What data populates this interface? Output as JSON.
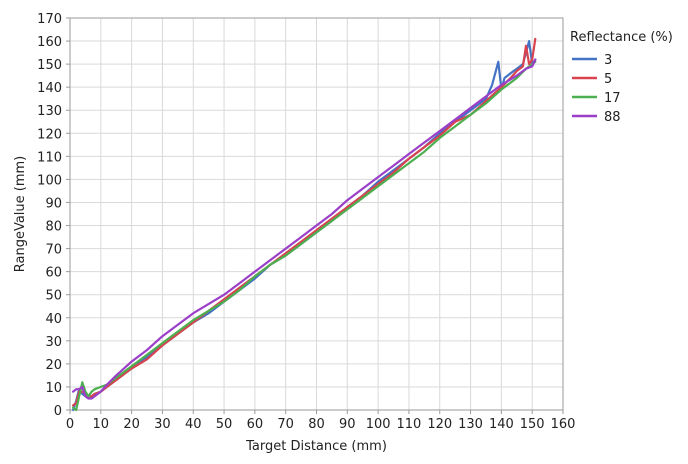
{
  "chart_data": {
    "type": "line",
    "xlabel": "Target Distance (mm)",
    "ylabel": "RangeValue (mm)",
    "xlim": [
      0,
      160
    ],
    "ylim": [
      0,
      170
    ],
    "xticks": [
      0,
      10,
      20,
      30,
      40,
      50,
      60,
      70,
      80,
      90,
      100,
      110,
      120,
      130,
      140,
      150,
      160
    ],
    "yticks": [
      0,
      10,
      20,
      30,
      40,
      50,
      60,
      70,
      80,
      90,
      100,
      110,
      120,
      130,
      140,
      150,
      160,
      170
    ],
    "grid": true,
    "legend_title": "Reflectance (%)",
    "legend_position": "right",
    "series": [
      {
        "name": "3",
        "color": "#4472C4",
        "x": [
          1,
          2,
          3,
          4,
          5,
          6,
          7,
          8,
          10,
          12,
          15,
          20,
          25,
          30,
          35,
          40,
          45,
          50,
          55,
          60,
          65,
          70,
          75,
          80,
          85,
          90,
          95,
          100,
          105,
          110,
          115,
          120,
          125,
          130,
          135,
          137,
          139,
          140,
          141,
          143,
          145,
          147,
          149,
          150,
          151
        ],
        "y": [
          0,
          4,
          9,
          7,
          6,
          5,
          6,
          7,
          8,
          10,
          13,
          18,
          23,
          28,
          33,
          38,
          42,
          47,
          52,
          57,
          63,
          67,
          72,
          77,
          82,
          88,
          93,
          99,
          104,
          109,
          114,
          120,
          125,
          130,
          135,
          141,
          151,
          139,
          144,
          146,
          148,
          150,
          160,
          150,
          152
        ]
      },
      {
        "name": "5",
        "color": "#D9434F",
        "x": [
          1,
          2,
          3,
          4,
          5,
          6,
          7,
          8,
          10,
          12,
          15,
          20,
          25,
          30,
          35,
          40,
          45,
          50,
          55,
          60,
          65,
          70,
          75,
          80,
          85,
          90,
          95,
          100,
          105,
          110,
          115,
          120,
          125,
          130,
          135,
          140,
          143,
          145,
          147,
          148,
          149,
          150,
          151
        ],
        "y": [
          2,
          3,
          8,
          8,
          7,
          6,
          6,
          7,
          8,
          10,
          13,
          18,
          22,
          28,
          33,
          38,
          43,
          48,
          53,
          58,
          63,
          68,
          73,
          78,
          83,
          88,
          93,
          98,
          103,
          109,
          114,
          119,
          125,
          128,
          134,
          140,
          144,
          147,
          149,
          158,
          150,
          152,
          161
        ]
      },
      {
        "name": "17",
        "color": "#4CAF50",
        "x": [
          1,
          2,
          3,
          4,
          5,
          6,
          7,
          8,
          10,
          12,
          15,
          20,
          25,
          30,
          35,
          40,
          45,
          50,
          55,
          60,
          65,
          70,
          75,
          80,
          85,
          90,
          95,
          100,
          105,
          110,
          115,
          120,
          125,
          130,
          135,
          140,
          145,
          148,
          150,
          151
        ],
        "y": [
          1,
          0,
          6,
          12,
          8,
          6,
          8,
          9,
          10,
          11,
          14,
          19,
          24,
          29,
          34,
          39,
          43,
          47,
          52,
          58,
          63,
          67,
          72,
          77,
          82,
          87,
          92,
          97,
          102,
          107,
          112,
          118,
          123,
          128,
          133,
          139,
          144,
          148,
          150,
          151
        ]
      },
      {
        "name": "88",
        "color": "#9B3FC9",
        "x": [
          1,
          2,
          3,
          4,
          5,
          6,
          7,
          8,
          10,
          12,
          15,
          20,
          25,
          30,
          35,
          40,
          45,
          50,
          55,
          60,
          65,
          70,
          75,
          80,
          85,
          90,
          95,
          100,
          105,
          110,
          115,
          120,
          125,
          130,
          135,
          140,
          145,
          148,
          150,
          151
        ],
        "y": [
          8,
          9,
          9,
          10,
          6,
          5,
          5,
          6,
          8,
          11,
          15,
          21,
          26,
          32,
          37,
          42,
          46,
          50,
          55,
          60,
          65,
          70,
          75,
          80,
          85,
          91,
          96,
          101,
          106,
          111,
          116,
          121,
          126,
          131,
          136,
          141,
          145,
          148,
          149,
          152
        ]
      }
    ]
  }
}
